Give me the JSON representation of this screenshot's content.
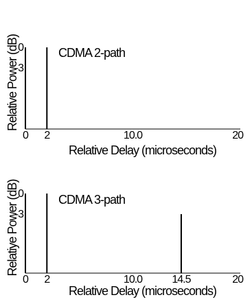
{
  "chart_data": [
    {
      "type": "bar",
      "title": "",
      "xlabel": "Relative Delay (microseconds)",
      "ylabel": "Relative Power (dB)",
      "series_label": "CDMA 2-path",
      "xlim": [
        0,
        20
      ],
      "ylim": [
        0,
        7
      ],
      "y_axis_inverted": true,
      "x_ticks": [
        {
          "value": 0,
          "label": "0"
        },
        {
          "value": 2,
          "label": "2"
        },
        {
          "value": 10,
          "label": "10.0"
        },
        {
          "value": 20,
          "label": "20"
        }
      ],
      "y_ticks": [
        {
          "value": 0,
          "label": "0"
        },
        {
          "value": 3,
          "label": "-3"
        }
      ],
      "impulses": [
        {
          "delay": 0,
          "power_db": 0
        },
        {
          "delay": 2,
          "power_db": 0
        }
      ],
      "grid": false
    },
    {
      "type": "bar",
      "title": "",
      "xlabel": "Relative Delay (microseconds)",
      "ylabel": "Relatiye Power (dB)",
      "series_label": "CDMA 3-path",
      "xlim": [
        0,
        20
      ],
      "ylim": [
        0,
        7
      ],
      "y_axis_inverted": true,
      "x_ticks": [
        {
          "value": 0,
          "label": "0"
        },
        {
          "value": 2,
          "label": "2"
        },
        {
          "value": 10,
          "label": "10.0"
        },
        {
          "value": 14.5,
          "label": "14.5"
        },
        {
          "value": 20,
          "label": "20"
        }
      ],
      "y_ticks": [
        {
          "value": 0,
          "label": "0"
        },
        {
          "value": 3,
          "label": "-3"
        }
      ],
      "impulses": [
        {
          "delay": 0,
          "power_db": 0
        },
        {
          "delay": 2,
          "power_db": 0
        },
        {
          "delay": 14.5,
          "power_db": 3
        }
      ],
      "grid": false
    }
  ]
}
